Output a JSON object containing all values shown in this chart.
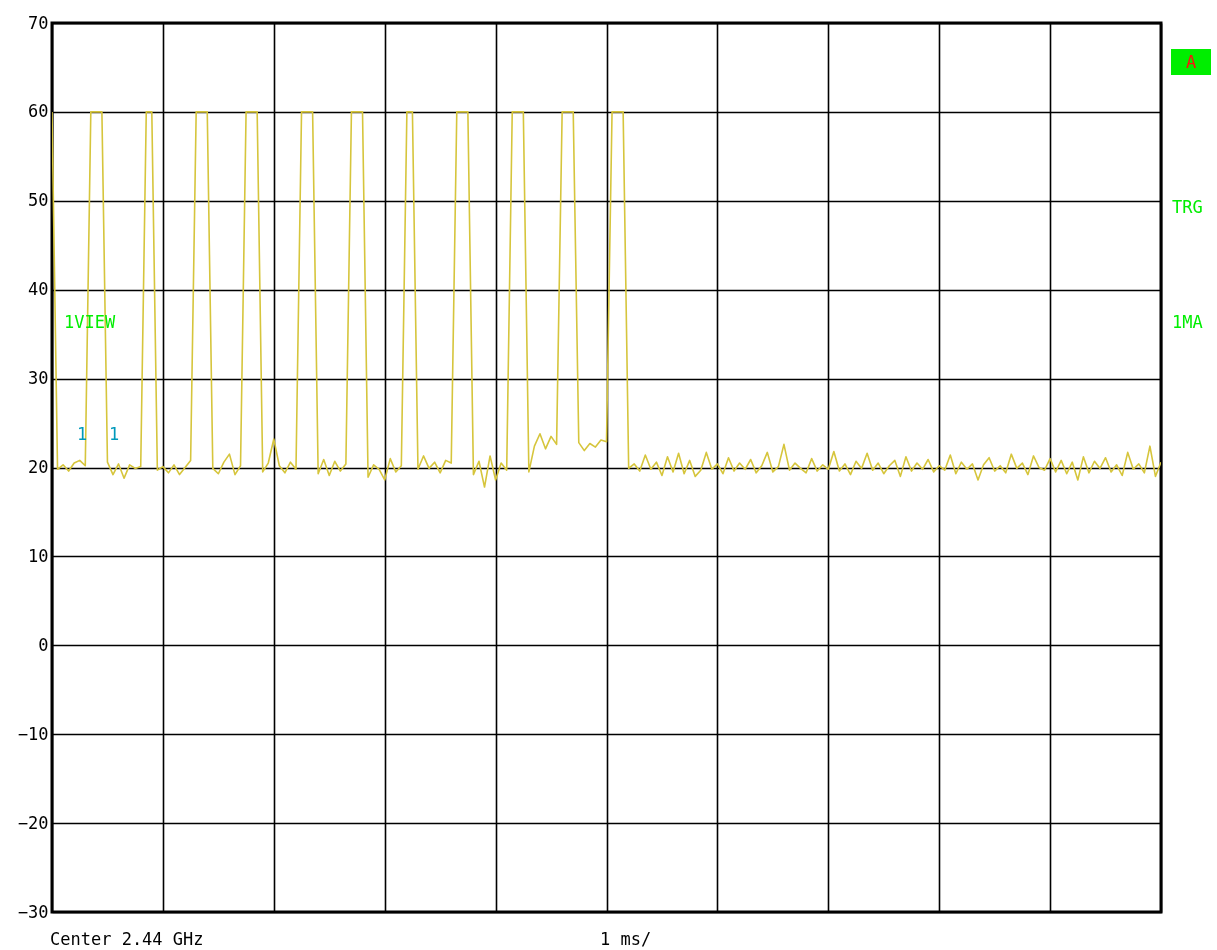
{
  "chart_data": {
    "type": "line",
    "categories": [
      null,
      null,
      null,
      null,
      null,
      null,
      null,
      null,
      null,
      null,
      null,
      null,
      null,
      null,
      null,
      null,
      null,
      null,
      null,
      null,
      null,
      null,
      null,
      null,
      null,
      null,
      null,
      null,
      null,
      null,
      null,
      null,
      null,
      null,
      null,
      null,
      null,
      null,
      null,
      null,
      null,
      null,
      null,
      null,
      null,
      null,
      null,
      null,
      null,
      null,
      null,
      null,
      null,
      null,
      null,
      null,
      null,
      null,
      null,
      null,
      null,
      null,
      null,
      null,
      null,
      null,
      null,
      null,
      null,
      null,
      null,
      null,
      null,
      null,
      null,
      null,
      null,
      null,
      null,
      null,
      null,
      null,
      null,
      null,
      null,
      null,
      null,
      null,
      null,
      null,
      null,
      null,
      null,
      null,
      null,
      null,
      null,
      null,
      null,
      null,
      null,
      null,
      null,
      null,
      null,
      null,
      null,
      null,
      null,
      null,
      null,
      null,
      null,
      null,
      null,
      null,
      null,
      null,
      null,
      null,
      null,
      null,
      null,
      null,
      null,
      null,
      null,
      null,
      null,
      null,
      null,
      null,
      null,
      null,
      null,
      null,
      null,
      null,
      null,
      null,
      null,
      null,
      null,
      null,
      null,
      null,
      null,
      null,
      null,
      null,
      null,
      null,
      null,
      null,
      null,
      null,
      null,
      null,
      null,
      null,
      null,
      null,
      null,
      null,
      null,
      null,
      null,
      null,
      null,
      null,
      null,
      null,
      null,
      null,
      null,
      null,
      null,
      null,
      null,
      null,
      null,
      null,
      null,
      null,
      null,
      null,
      null,
      null,
      null,
      null,
      null,
      null,
      null,
      null,
      null,
      null,
      null,
      null,
      null,
      null,
      null
    ],
    "series": [
      {
        "color": "#d6c53c",
        "values": [
          60,
          19.8,
          20.3,
          19.6,
          20.5,
          20.8,
          20.2,
          60,
          60,
          60,
          20.6,
          19.2,
          20.4,
          18.8,
          20.3,
          19.9,
          20.1,
          60,
          60,
          19.7,
          20.1,
          19.4,
          20.3,
          19.2,
          20.0,
          20.8,
          60,
          60,
          60,
          19.9,
          19.3,
          20.6,
          21.5,
          19.2,
          20.2,
          60,
          60,
          60,
          19.5,
          20.5,
          23.2,
          20.2,
          19.4,
          20.6,
          19.8,
          60,
          60,
          60,
          19.3,
          20.9,
          19.1,
          20.7,
          19.6,
          20.4,
          60,
          60,
          60,
          18.9,
          20.3,
          19.8,
          18.6,
          21.0,
          19.5,
          20.2,
          60,
          60,
          19.8,
          21.3,
          19.9,
          20.6,
          19.4,
          20.8,
          20.5,
          60,
          60,
          60,
          19.2,
          20.7,
          17.8,
          21.3,
          18.6,
          20.5,
          19.7,
          60,
          60,
          60,
          19.5,
          22.4,
          23.8,
          22.1,
          23.5,
          22.6,
          60,
          60,
          60,
          22.8,
          21.9,
          22.7,
          22.3,
          23.1,
          22.9,
          60,
          60,
          60,
          19.9,
          20.4,
          19.6,
          21.4,
          19.8,
          20.6,
          19.1,
          21.2,
          19.5,
          21.6,
          19.3,
          20.8,
          19.0,
          19.7,
          21.7,
          19.8,
          20.4,
          19.3,
          21.1,
          19.6,
          20.5,
          19.8,
          20.9,
          19.4,
          20.2,
          21.7,
          19.5,
          20.1,
          22.6,
          19.7,
          20.5,
          19.9,
          19.4,
          21.0,
          19.6,
          20.3,
          19.8,
          21.8,
          19.6,
          20.4,
          19.2,
          20.7,
          19.9,
          21.6,
          19.7,
          20.5,
          19.3,
          20.2,
          20.8,
          19.0,
          21.2,
          19.6,
          20.5,
          19.8,
          20.9,
          19.5,
          20.2,
          19.7,
          21.4,
          19.3,
          20.6,
          19.8,
          20.4,
          18.6,
          20.3,
          21.1,
          19.6,
          20.2,
          19.4,
          21.5,
          19.9,
          20.5,
          19.2,
          21.3,
          20.0,
          19.7,
          21.0,
          19.5,
          20.8,
          19.3,
          20.6,
          18.6,
          21.2,
          19.4,
          20.7,
          19.9,
          21.1,
          19.5,
          20.3,
          19.1,
          21.7,
          19.8,
          20.4,
          19.4,
          22.4,
          19.0,
          20.6
        ]
      }
    ],
    "ylim": [
      -30,
      70
    ],
    "yticks": [
      -30,
      -20,
      -10,
      0,
      10,
      20,
      30,
      40,
      50,
      60,
      70
    ],
    "grid": true,
    "marker": "none",
    "line_style": "solid",
    "annotations": [
      "1VIEW",
      "A",
      "TRG",
      "1MA",
      "1",
      "1",
      "Center 2.44 GHz",
      "1 ms/"
    ]
  }
}
